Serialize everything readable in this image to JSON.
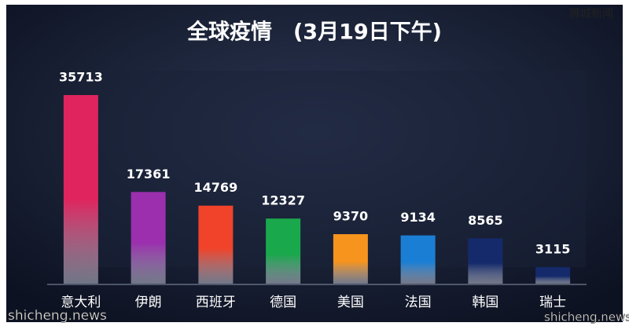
{
  "chart_data": {
    "type": "bar",
    "title": "全球疫情　(3月19日下午)",
    "categories": [
      "意大利",
      "伊朗",
      "西班牙",
      "德国",
      "美国",
      "法国",
      "韩国",
      "瑞士"
    ],
    "values": [
      35713,
      17361,
      14769,
      12327,
      9370,
      9134,
      8565,
      3115
    ],
    "colors": [
      "#e0245e",
      "#9b2fae",
      "#f0432a",
      "#1aa84c",
      "#f7941d",
      "#1a7fd4",
      "#142a6b",
      "#142a6b"
    ],
    "annotations": [
      "狮城新闻",
      "shicheng.news",
      "shicheng.news"
    ]
  }
}
